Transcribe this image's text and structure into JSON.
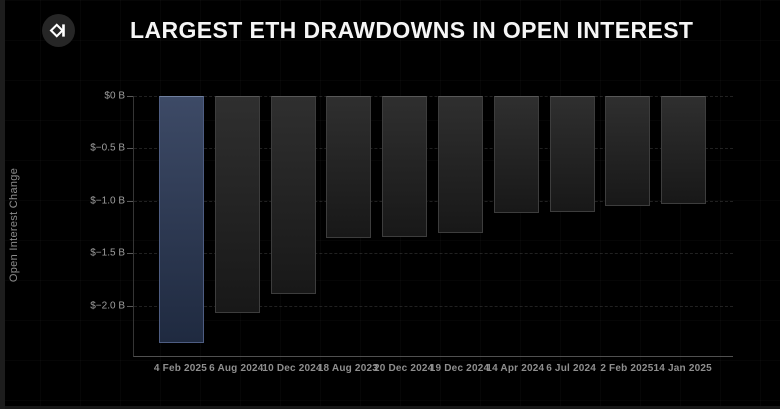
{
  "header": {
    "title": "LARGEST ETH DRAWDOWNS IN OPEN INTEREST",
    "logo": "sigma-diamond-logo"
  },
  "chart_data": {
    "type": "bar",
    "title": "LARGEST ETH DRAWDOWNS IN OPEN INTEREST",
    "xlabel": "",
    "ylabel": "Open Interest Change",
    "unit": "billions USD",
    "categories": [
      "4 Feb 2025",
      "6 Aug 2024",
      "10 Dec 2024",
      "18 Aug 2023",
      "20 Dec 2024",
      "19 Dec 2024",
      "14 Apr 2024",
      "6 Jul 2024",
      "2 Feb 2025",
      "14 Jan 2025"
    ],
    "values": [
      -2.36,
      -2.07,
      -1.89,
      -1.35,
      -1.34,
      -1.31,
      -1.12,
      -1.11,
      -1.05,
      -1.03
    ],
    "highlight_index": 0,
    "ylim": [
      -2.49,
      0
    ],
    "y_ticks": [
      {
        "label": "$0 B",
        "value": 0
      },
      {
        "label": "$−0.5 B",
        "value": -0.5
      },
      {
        "label": "$−1.0 B",
        "value": -1.0
      },
      {
        "label": "$−1.5 B",
        "value": -1.5
      },
      {
        "label": "$−2.0 B",
        "value": -2.0
      }
    ],
    "grid": "dashed-horizontal",
    "legend": "none",
    "colors": {
      "background": "#000000",
      "title_text": "#f5f5f5",
      "bar_fill": "#262626",
      "bar_border": "#3d3d3d",
      "highlight_fill": "#36425e",
      "highlight_border": "#4e5d82",
      "axis_line": "#505050",
      "tick_text": "#9e9e9e",
      "edge_strip": "#1d1d1d"
    }
  }
}
